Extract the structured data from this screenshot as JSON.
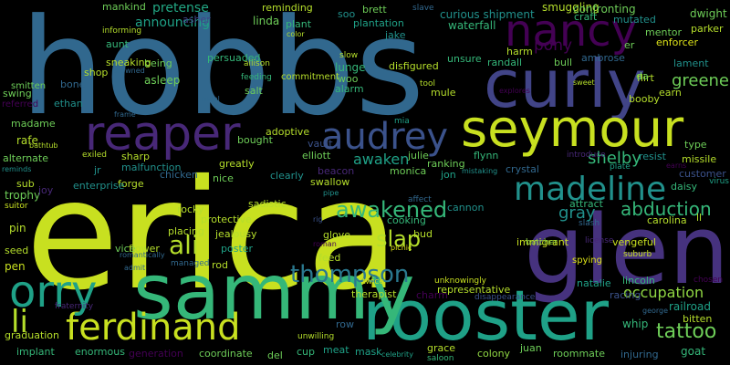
{
  "palette": {
    "background": "#000000",
    "colors": [
      "#3b528b",
      "#440154",
      "#46327e",
      "#414487",
      "#31688e",
      "#2a788e",
      "#21918c",
      "#1fa187",
      "#22a884",
      "#35b779",
      "#4ac16d",
      "#6ece58",
      "#90d743",
      "#b5de2b",
      "#c8e020",
      "#dde318",
      "#fde725",
      "#482878"
    ]
  },
  "words": {
    "hobbs": "hobbs",
    "erica": "erica",
    "glen": "glen",
    "rooster": "rooster",
    "sammy": "sammy",
    "curly": "curly",
    "seymour": "seymour",
    "reaper": "reaper",
    "nancy": "nancy",
    "audrey": "audrey",
    "madeline": "madeline",
    "ferdinand": "ferdinand",
    "orry": "orry",
    "ali": "ali",
    "li": "li",
    "thompson": "thompson",
    "awakened": "awakened",
    "slap": "slap",
    "abduction": "abduction",
    "tattoo": "tattoo",
    "occupation": "occupation",
    "greene": "greene",
    "shelby": "shelby",
    "awaken": "awaken",
    "pony": "pony",
    "gray": "gray",
    "pretense": "pretense",
    "announcing": "announcing",
    "curious_shipment": "curious shipment",
    "waterfall": "waterfall",
    "smuggling": "smuggling",
    "confronting": "confronting",
    "craft": "craft",
    "mutated": "mutated",
    "dwight": "dwight",
    "mentor": "mentor",
    "parker": "parker",
    "enforcer": "enforcer",
    "lament": "lament",
    "mankind": "mankind",
    "asher": "asher",
    "reminding": "reminding",
    "linda": "linda",
    "plant": "plant",
    "soo": "soo",
    "brett": "brett",
    "slave": "slave",
    "plantation": "plantation",
    "jake": "jake",
    "informing": "informing",
    "aunt": "aunt",
    "smitten": "smitten",
    "referred": "referred",
    "shop": "shop",
    "bone": "bone",
    "swing": "swing",
    "ethan": "ethan",
    "madame": "madame",
    "rafe": "rafe",
    "alternate": "alternate",
    "sub": "sub",
    "trophy": "trophy",
    "suitor": "suitor",
    "pin": "pin",
    "seed": "seed",
    "pen": "pen",
    "fraternity": "fraternity",
    "graduation": "graduation",
    "implant": "implant",
    "enormous": "enormous",
    "generation": "generation",
    "coordinate": "coordinate",
    "del": "del",
    "cup": "cup",
    "meat": "meat",
    "mask": "mask",
    "celebrity": "celebrity",
    "saloon": "saloon",
    "grace": "grace",
    "colony": "colony",
    "juan": "juan",
    "roommate": "roommate",
    "injuring": "injuring",
    "goat": "goat",
    "whip": "whip",
    "bitten": "bitten",
    "railroad": "railroad",
    "lincoln": "lincoln",
    "racing": "racing",
    "natalie": "natalie",
    "representative": "representative",
    "therapist": "therapist",
    "twice": "twice",
    "unknowingly": "unknowingly",
    "disappearance": "disappearance",
    "vengeful": "vengeful",
    "immigrant": "immigrant",
    "butcher": "butcher",
    "spying": "spying",
    "suburb": "suburb",
    "license": "license",
    "carolina": "carolina",
    "attract": "attract",
    "slash": "slash",
    "daisy": "daisy",
    "customer": "customer",
    "virus": "virus",
    "missile": "missile",
    "type": "type",
    "resist": "resist",
    "plate": "plate",
    "earns": "earns",
    "introduce": "introduce",
    "ranking": "ranking",
    "flynn": "flynn",
    "julie": "julie",
    "monica": "monica",
    "jon": "jon",
    "crystal": "crystal",
    "mistaking": "mistaking",
    "cannon": "cannon",
    "cooking": "cooking",
    "bud": "bud",
    "affect": "affect",
    "picnic": "picnic",
    "glove": "glove",
    "feed": "feed",
    "roman": "roman",
    "rig": "rig",
    "pipe": "pipe",
    "swallow": "swallow",
    "beacon": "beacon",
    "clearly": "clearly",
    "elliott": "elliott",
    "adoptive": "adoptive",
    "mia": "mia",
    "vault": "vault",
    "bought": "bought",
    "greatly": "greatly",
    "nice": "nice",
    "sadistic": "sadistic",
    "rocky": "rocky",
    "protective": "protective",
    "placing": "placing",
    "jealousy": "jealousy",
    "poster": "poster",
    "rod": "rod",
    "managed": "managed",
    "admit": "admit",
    "vice": "vice",
    "flower": "flower",
    "romantically": "romantically",
    "forge": "forge",
    "chicken": "chicken",
    "malfunction": "malfunction",
    "sharp": "sharp",
    "exiled": "exiled",
    "jr": "jr",
    "enterprise": "enterprise",
    "joy": "joy",
    "reminds": "reminds",
    "bathtub": "bathtub",
    "frame": "frame",
    "meal": "meal",
    "salt": "salt",
    "feeding": "feeding",
    "allison": "allison",
    "commitment": "commitment",
    "color": "color",
    "slow": "slow",
    "lunge": "lunge",
    "woo": "woo",
    "alarm": "alarm",
    "disfigured": "disfigured",
    "unsure": "unsure",
    "randall": "randall",
    "harm": "harm",
    "bull": "bull",
    "ambrose": "ambrose",
    "er": "er",
    "flirt": "flirt",
    "da": "da",
    "earn": "earn",
    "booby": "booby",
    "explores": "explores",
    "sweet": "sweet",
    "mule": "mule",
    "tool": "tool",
    "being": "being",
    "asleep": "asleep",
    "drowned": "drowned",
    "sneaking": "sneaking",
    "persuaded": "persuaded",
    "row": "row",
    "unwilling": "unwilling",
    "charm": "charm",
    "ll": "ll",
    "george": "george",
    "chosen": "chosen"
  }
}
